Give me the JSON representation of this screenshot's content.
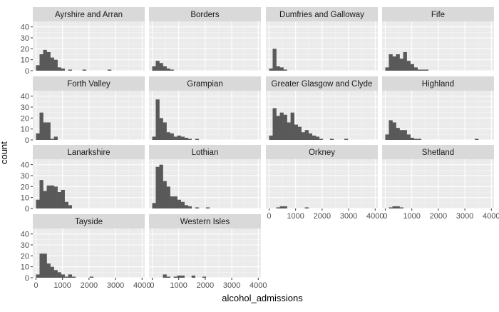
{
  "chart_data": {
    "type": "bar",
    "chart_kind": "faceted histogram",
    "xlabel": "alcohol_admissions",
    "ylabel": "count",
    "xlim": [
      -120,
      4100
    ],
    "ylim": [
      0,
      45
    ],
    "x_ticks": [
      0,
      1000,
      2000,
      3000,
      4000
    ],
    "y_ticks": [
      0,
      10,
      20,
      30,
      40
    ],
    "grid": true,
    "bin_width": 135,
    "bin_start": 0,
    "bar_color": "#595959",
    "panel_background": "#ebebeb",
    "strip_background": "#d9d9d9",
    "facets": [
      {
        "name": "Ayrshire and Arran",
        "counts": [
          5,
          15,
          19,
          17,
          12,
          10,
          3,
          2,
          0,
          1,
          0,
          0,
          0,
          1,
          0,
          0,
          0,
          0,
          0,
          0,
          1
        ]
      },
      {
        "name": "Borders",
        "counts": [
          4,
          9,
          7,
          4,
          2,
          1
        ]
      },
      {
        "name": "Dumfries and Galloway",
        "counts": [
          2,
          20,
          4,
          3,
          1
        ]
      },
      {
        "name": "Fife",
        "counts": [
          3,
          15,
          13,
          15,
          11,
          17,
          9,
          6,
          3,
          1,
          1,
          1
        ]
      },
      {
        "name": "Forth Valley",
        "counts": [
          6,
          25,
          16,
          16,
          1,
          3
        ]
      },
      {
        "name": "Grampian",
        "counts": [
          3,
          37,
          20,
          16,
          7,
          6,
          3,
          4,
          3,
          2,
          1,
          0,
          1
        ]
      },
      {
        "name": "Greater Glasgow and Clyde",
        "counts": [
          4,
          29,
          22,
          25,
          23,
          16,
          25,
          14,
          12,
          7,
          9,
          6,
          4,
          3,
          1,
          0,
          0,
          1,
          0,
          0,
          0,
          1
        ]
      },
      {
        "name": "Highland",
        "counts": [
          5,
          18,
          16,
          11,
          9,
          9,
          5,
          2,
          1,
          1,
          0,
          0,
          0,
          0,
          0,
          0,
          0,
          0,
          0,
          0,
          0,
          0,
          0,
          0,
          0,
          1
        ]
      },
      {
        "name": "Lanarkshire",
        "counts": [
          8,
          26,
          16,
          21,
          21,
          20,
          15,
          17,
          6,
          3
        ]
      },
      {
        "name": "Lothian",
        "counts": [
          5,
          38,
          40,
          25,
          20,
          11,
          11,
          8,
          6,
          3,
          2,
          0,
          1,
          0,
          0,
          1
        ]
      },
      {
        "name": "Orkney",
        "counts": [
          0,
          0,
          1,
          2,
          2,
          0,
          0,
          0,
          0,
          0,
          1
        ]
      },
      {
        "name": "Shetland",
        "counts": [
          0,
          1,
          2,
          2,
          1
        ]
      },
      {
        "name": "Tayside",
        "counts": [
          3,
          22,
          22,
          13,
          10,
          7,
          5,
          3,
          1,
          3,
          1,
          0,
          0,
          0,
          0,
          1
        ]
      },
      {
        "name": "Western Isles",
        "counts": [
          0,
          0,
          0,
          3,
          1,
          0,
          1,
          2,
          2,
          0,
          0,
          2,
          0,
          0,
          1
        ]
      }
    ]
  }
}
